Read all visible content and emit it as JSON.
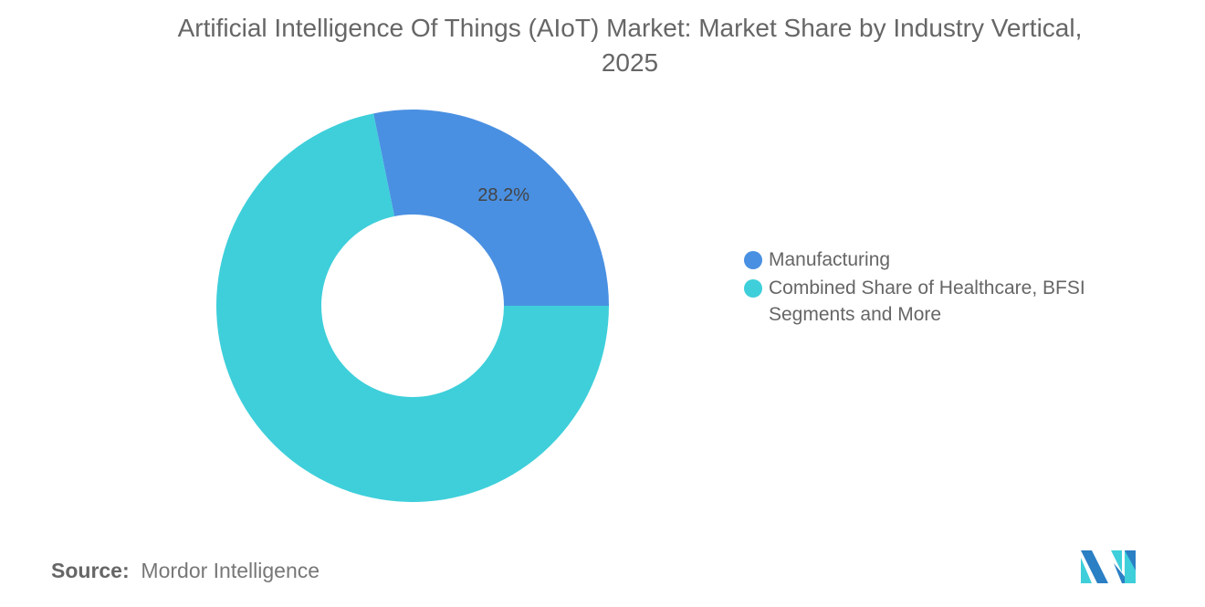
{
  "chart_data": {
    "type": "pie",
    "variant": "donut",
    "title": "Artificial Intelligence Of Things (AIoT) Market: Market Share by Industry Vertical, 2025",
    "slices": [
      {
        "label": "Manufacturing",
        "value": 28.2,
        "color": "#4a90e2",
        "data_label": "28.2%"
      },
      {
        "label": "Combined Share of Healthcare, BFSI Segments and More",
        "value": 71.8,
        "color": "#3ecfda"
      }
    ],
    "legend_position": "right"
  },
  "source": {
    "label": "Source:",
    "value": "Mordor Intelligence"
  },
  "logo": {
    "text": "Mordor Intelligence",
    "colors": [
      "#2b7fc4",
      "#3ecfda"
    ]
  }
}
